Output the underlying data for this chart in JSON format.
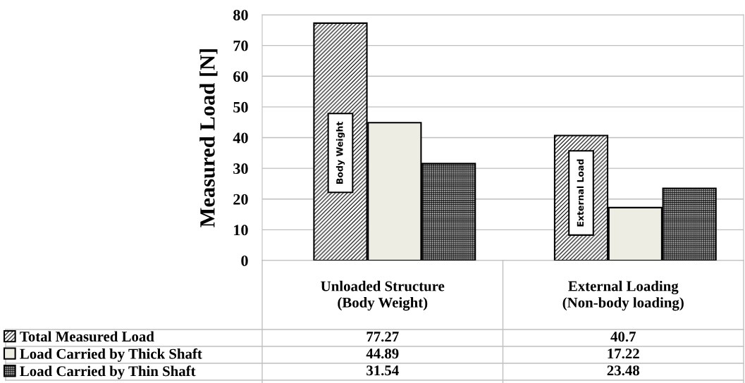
{
  "chart_data": {
    "type": "bar",
    "ylabel": "Measured Load [N]",
    "categories": [
      "Unloaded Structure\n(Body Weight)",
      "External Loading\n(Non-body loading)"
    ],
    "series": [
      {
        "name": "Total Measured Load",
        "color": "#000000",
        "values": [
          77.27,
          40.7
        ]
      },
      {
        "name": "Load Carried by Thick Shaft",
        "color": "#eeede4",
        "values": [
          44.89,
          17.22
        ]
      },
      {
        "name": "Load Carried by Thin Shaft",
        "color": "#000000",
        "values": [
          31.54,
          23.48
        ]
      }
    ],
    "ylim": [
      0,
      80
    ],
    "yticks": [
      0,
      10,
      20,
      30,
      40,
      50,
      60,
      70,
      80
    ],
    "grid": "y",
    "legend": "bottom left",
    "data_labels": true,
    "annotations": [
      "Body Weight",
      "External Load"
    ]
  }
}
